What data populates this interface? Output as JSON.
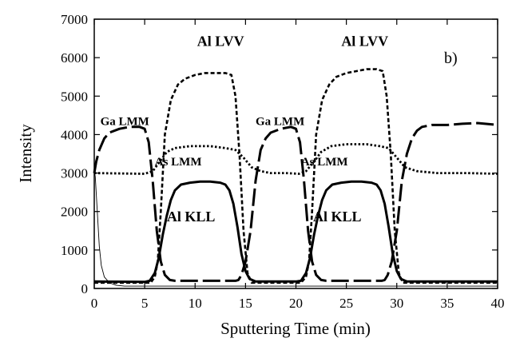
{
  "chart_data": {
    "type": "line",
    "title": "",
    "panel_label": "b)",
    "xlabel": "Sputtering Time (min)",
    "ylabel": "Intensity",
    "xlim": [
      0,
      40
    ],
    "ylim": [
      0,
      7000
    ],
    "x_ticks": [
      0,
      5,
      10,
      15,
      20,
      25,
      30,
      35,
      40
    ],
    "y_ticks": [
      0,
      1000,
      2000,
      3000,
      4000,
      5000,
      6000,
      7000
    ],
    "grid": false,
    "legend": "none",
    "annotations": [
      {
        "text": "Al LVV",
        "x": 10.2,
        "y": 6300,
        "size": "large"
      },
      {
        "text": "Al LVV",
        "x": 24.5,
        "y": 6300,
        "size": "large"
      },
      {
        "text": "Ga LMM",
        "x": 0.6,
        "y": 4250,
        "size": "small"
      },
      {
        "text": "Ga LMM",
        "x": 16.0,
        "y": 4250,
        "size": "small"
      },
      {
        "text": "As LMM",
        "x": 6.0,
        "y": 3200,
        "size": "small"
      },
      {
        "text": "As LMM",
        "x": 20.5,
        "y": 3200,
        "size": "small"
      },
      {
        "text": "Al KLL",
        "x": 7.2,
        "y": 1750,
        "size": "large"
      },
      {
        "text": "Al KLL",
        "x": 21.7,
        "y": 1750,
        "size": "large"
      }
    ],
    "series": [
      {
        "style": "short-dash",
        "x": [
          0,
          5.6,
          6.0,
          6.3,
          6.6,
          7.0,
          7.6,
          8.3,
          9.0,
          10.0,
          11.0,
          12.0,
          13.0,
          13.6,
          14.0,
          14.4,
          14.8,
          15.2,
          15.6,
          20.5,
          21.0,
          21.3,
          21.6,
          22.0,
          22.6,
          23.3,
          24.0,
          25.0,
          26.0,
          27.0,
          28.0,
          28.6,
          29.0,
          29.4,
          29.8,
          30.2,
          30.6,
          40
        ],
        "y": [
          150,
          150,
          300,
          700,
          2000,
          4000,
          4900,
          5300,
          5450,
          5550,
          5600,
          5600,
          5600,
          5550,
          5000,
          3500,
          1500,
          400,
          150,
          150,
          300,
          700,
          2000,
          4000,
          4900,
          5300,
          5500,
          5600,
          5650,
          5700,
          5700,
          5650,
          5000,
          3500,
          1500,
          400,
          150,
          150
        ]
      },
      {
        "style": "long-dash",
        "x": [
          0,
          0.2,
          0.5,
          1.0,
          1.5,
          2.5,
          3.5,
          4.5,
          5.0,
          5.4,
          5.8,
          6.2,
          6.6,
          7.0,
          7.5,
          8.0,
          14.0,
          14.3,
          14.6,
          15.0,
          15.5,
          16.0,
          16.5,
          17.0,
          17.5,
          18.5,
          19.5,
          20.0,
          20.4,
          20.8,
          21.2,
          21.6,
          22.0,
          22.5,
          23.0,
          28.5,
          28.8,
          29.1,
          29.5,
          30.0,
          30.5,
          31.0,
          31.5,
          32.0,
          32.5,
          33.5,
          35.0,
          36.5,
          38.0,
          40.0
        ],
        "y": [
          3000,
          3300,
          3600,
          3900,
          4050,
          4150,
          4200,
          4200,
          4150,
          3800,
          2800,
          1500,
          700,
          350,
          220,
          200,
          200,
          220,
          350,
          700,
          1500,
          2800,
          3600,
          3900,
          4050,
          4150,
          4200,
          4150,
          3800,
          2800,
          1500,
          700,
          350,
          220,
          200,
          200,
          220,
          350,
          700,
          1500,
          2800,
          3500,
          3900,
          4100,
          4200,
          4250,
          4250,
          4280,
          4300,
          4250
        ]
      },
      {
        "style": "dotted",
        "x": [
          0,
          5.0,
          5.8,
          6.5,
          7.2,
          8.0,
          9.5,
          11.5,
          13.0,
          14.0,
          14.8,
          15.6,
          16.5,
          17.5,
          19.0,
          20.3,
          21.0,
          21.8,
          22.5,
          23.5,
          25.0,
          27.0,
          28.3,
          29.2,
          30.0,
          30.8,
          32.0,
          34.0,
          37.0,
          40.0
        ],
        "y": [
          3000,
          2980,
          3050,
          3300,
          3550,
          3650,
          3700,
          3700,
          3650,
          3600,
          3400,
          3150,
          3050,
          3000,
          3000,
          2980,
          3050,
          3300,
          3550,
          3700,
          3750,
          3750,
          3700,
          3650,
          3400,
          3150,
          3050,
          3000,
          3000,
          2980
        ]
      },
      {
        "style": "solid-thick",
        "x": [
          0,
          5.0,
          5.5,
          6.0,
          6.4,
          6.8,
          7.2,
          7.6,
          8.0,
          8.6,
          9.5,
          10.5,
          11.5,
          12.5,
          13.0,
          13.4,
          13.8,
          14.2,
          14.6,
          15.0,
          15.4,
          16.0,
          20.0,
          20.5,
          21.0,
          21.4,
          21.8,
          22.2,
          22.6,
          23.0,
          23.6,
          24.5,
          25.5,
          26.5,
          27.5,
          28.0,
          28.4,
          28.8,
          29.2,
          29.6,
          30.0,
          30.4,
          31.0,
          40.0
        ],
        "y": [
          180,
          170,
          200,
          400,
          800,
          1400,
          1900,
          2300,
          2550,
          2700,
          2750,
          2780,
          2780,
          2750,
          2700,
          2550,
          2200,
          1600,
          900,
          450,
          250,
          180,
          180,
          200,
          400,
          800,
          1400,
          1900,
          2300,
          2550,
          2700,
          2750,
          2780,
          2780,
          2750,
          2700,
          2550,
          2200,
          1600,
          900,
          450,
          250,
          180,
          180
        ]
      },
      {
        "style": "solid-thin",
        "x": [
          0,
          0.1,
          0.3,
          0.5,
          0.7,
          1.0,
          1.5,
          2.2,
          3.0,
          40.0
        ],
        "y": [
          3100,
          2900,
          2000,
          1100,
          600,
          300,
          150,
          80,
          60,
          60
        ]
      }
    ]
  }
}
